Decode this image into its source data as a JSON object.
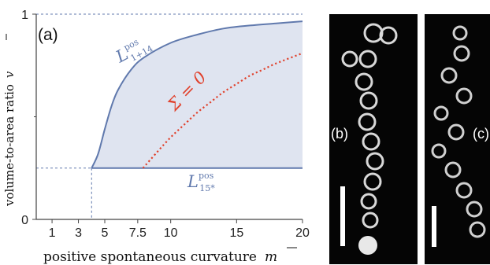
{
  "chart_data": {
    "type": "area",
    "panel_label": "(a)",
    "xlabel": "positive spontaneous curvature",
    "xlabel_symbol": "m",
    "ylabel": "volume-to-area ratio",
    "ylabel_symbol": "v",
    "x_ticks": [
      "1",
      "3",
      "5",
      "7.5",
      "10",
      "15",
      "20"
    ],
    "x_tick_values": [
      1,
      3,
      5,
      7.5,
      10,
      15,
      20
    ],
    "y_ticks": [
      "0",
      "1"
    ],
    "y_tick_values": [
      0,
      1
    ],
    "xlim": [
      -0.2,
      20
    ],
    "ylim": [
      0,
      1
    ],
    "grid": false,
    "series": [
      {
        "name_main": "L",
        "name_sup": "pos",
        "name_sub": "1+14",
        "style": "solid",
        "color": "#6079ad",
        "x": [
          4.0,
          4.5,
          5.0,
          5.5,
          6.0,
          7.0,
          8.0,
          10.0,
          12.0,
          14.0,
          16.0,
          18.0,
          20.0
        ],
        "y": [
          0.25,
          0.32,
          0.44,
          0.55,
          0.63,
          0.73,
          0.79,
          0.86,
          0.9,
          0.93,
          0.945,
          0.955,
          0.965
        ]
      },
      {
        "name_main": "L",
        "name_sup": "pos",
        "name_sub": "15*",
        "style": "solid",
        "color": "#6079ad",
        "x": [
          4.0,
          20.0
        ],
        "y": [
          0.25,
          0.25
        ]
      },
      {
        "name_main": "Σ = 0",
        "style": "dotted",
        "color": "#e0412c",
        "x": [
          7.9,
          9.0,
          10.0,
          11.0,
          12.0,
          13.0,
          14.0,
          15.0,
          16.0,
          17.0,
          18.0,
          20.0
        ],
        "y": [
          0.25,
          0.33,
          0.4,
          0.46,
          0.52,
          0.57,
          0.62,
          0.66,
          0.7,
          0.73,
          0.76,
          0.81
        ]
      }
    ],
    "fill": {
      "between": [
        "L_1+14",
        "L_15*"
      ],
      "color": "#dfe4f0"
    },
    "threshold_x": 4.0,
    "threshold_y": 0.25
  },
  "images": [
    {
      "label": "(b)"
    },
    {
      "label": "(c)"
    }
  ],
  "colors": {
    "axis": "#444444",
    "blue": "#6079ad",
    "red": "#e0412c",
    "fill": "#dfe4f0",
    "micrograph_bg": "#050505"
  }
}
